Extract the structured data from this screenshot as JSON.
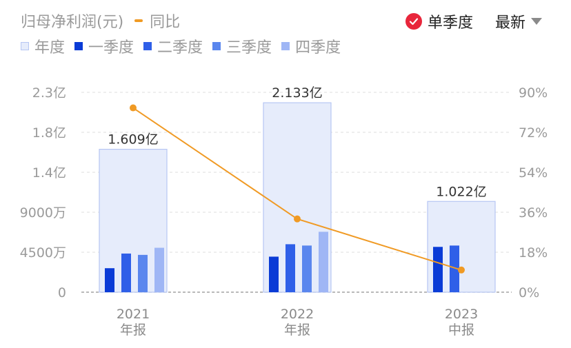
{
  "header": {
    "title": "归母净利润(元)",
    "yoy_label": "同比",
    "toggle_label": "单季度",
    "sort_label": "最新"
  },
  "legend": {
    "items": [
      {
        "label": "年度",
        "color": "#e6ecfb"
      },
      {
        "label": "一季度",
        "color": "#0a3bd6"
      },
      {
        "label": "二季度",
        "color": "#2f5fe8"
      },
      {
        "label": "三季度",
        "color": "#5a86ee"
      },
      {
        "label": "四季度",
        "color": "#9fb6f5"
      }
    ]
  },
  "colors": {
    "annual_fill": "#e6ecfb",
    "annual_stroke": "#b6c6f3",
    "yoy_line": "#f09a24",
    "toggle_red": "#e8263b",
    "axis_text": "#9a9a9a",
    "grid": "#dcdcdc"
  },
  "chart_data": {
    "type": "bar",
    "categories": [
      [
        "2021",
        "年报"
      ],
      [
        "2022",
        "年报"
      ],
      [
        "2023",
        "中报"
      ]
    ],
    "annual": {
      "values": [
        160900000,
        213300000,
        102200000
      ],
      "labels": [
        "1.609亿",
        "2.133亿",
        "1.022亿"
      ]
    },
    "series": [
      {
        "name": "一季度",
        "values": [
          27000000,
          40000000,
          51000000
        ]
      },
      {
        "name": "二季度",
        "values": [
          43500000,
          54000000,
          52500000
        ]
      },
      {
        "name": "三季度",
        "values": [
          42000000,
          52500000,
          null
        ]
      },
      {
        "name": "四季度",
        "values": [
          50000000,
          68000000,
          null
        ]
      }
    ],
    "yoy": {
      "name": "同比",
      "values": [
        83,
        33,
        10
      ]
    },
    "y_left": {
      "ticks": [
        "0",
        "4500万",
        "9000万",
        "1.4亿",
        "1.8亿",
        "2.3亿"
      ],
      "min": 0,
      "max": 225000000
    },
    "y_right": {
      "ticks": [
        "0%",
        "18%",
        "36%",
        "54%",
        "72%",
        "90%"
      ],
      "min": 0,
      "max": 90
    },
    "grid": true
  }
}
